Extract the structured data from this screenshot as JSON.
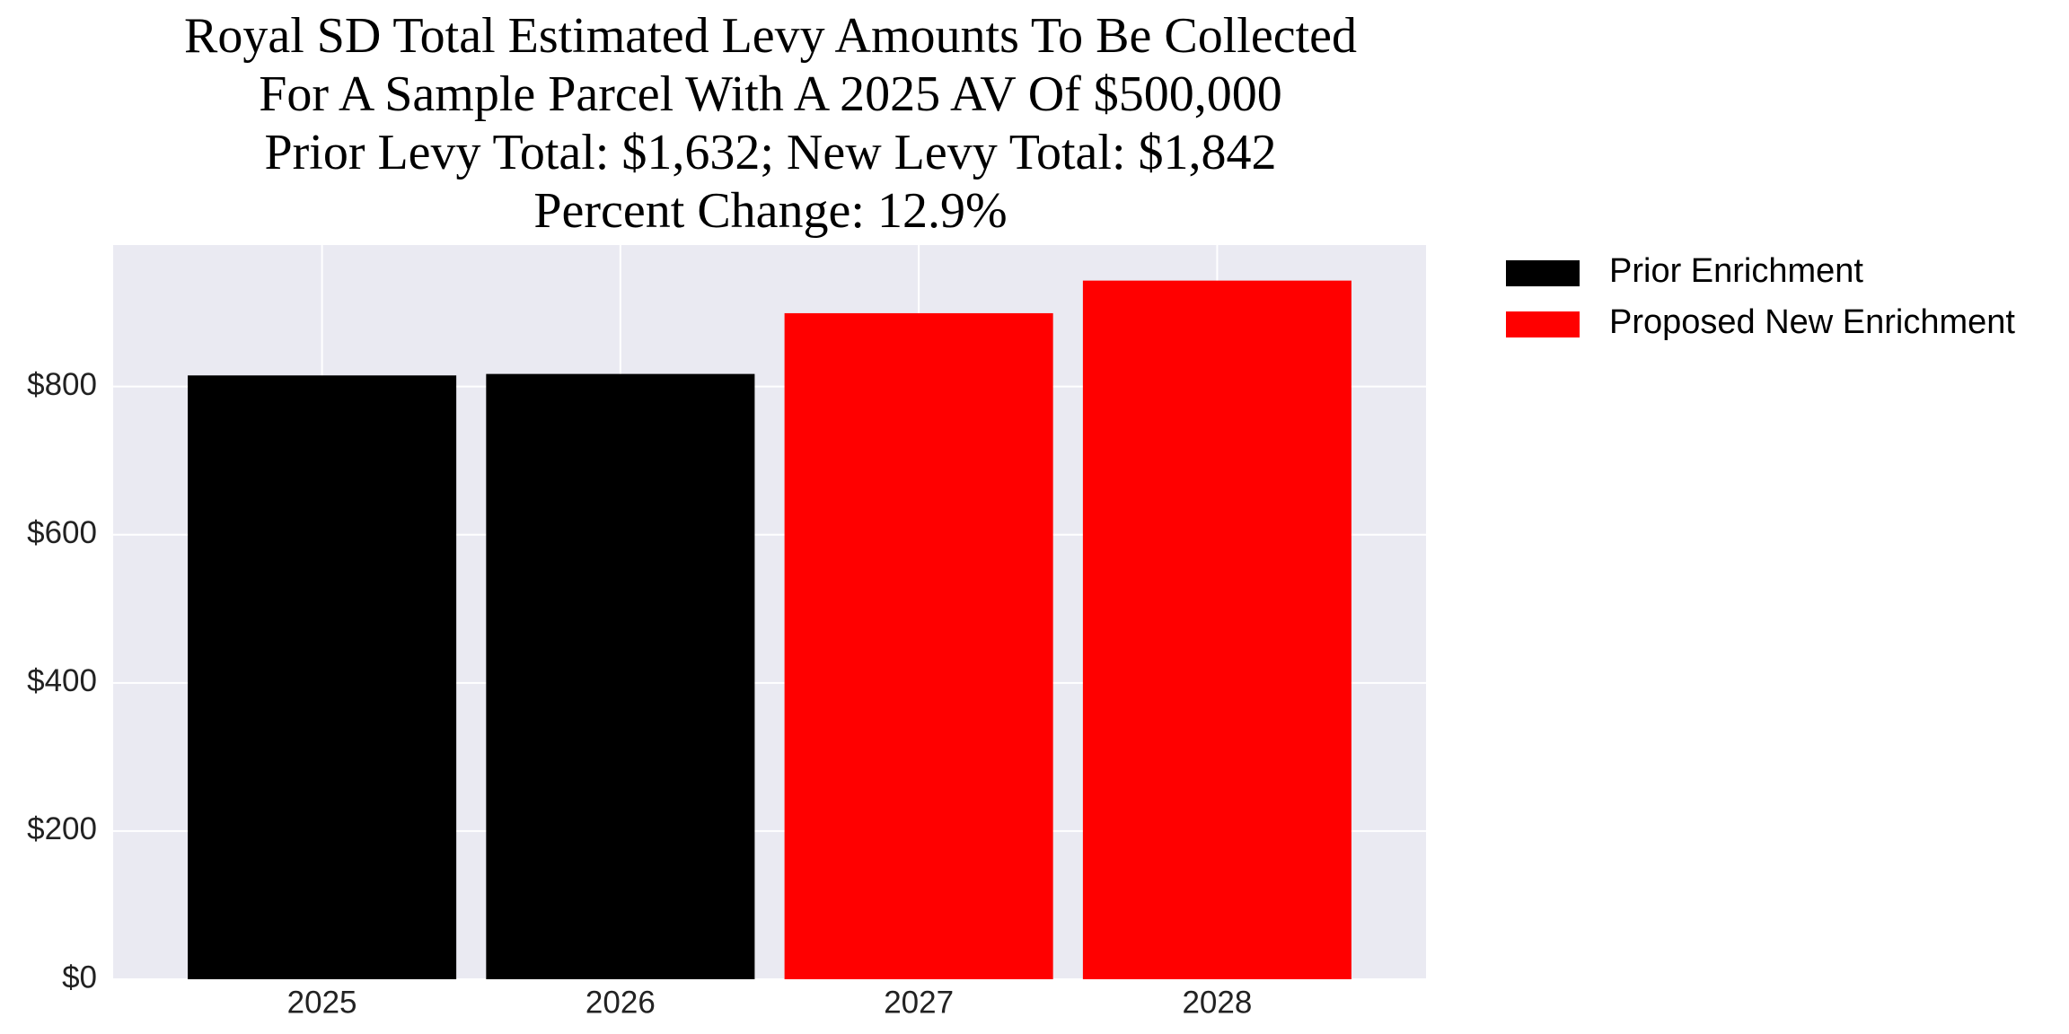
{
  "chart_data": {
    "type": "bar",
    "title": [
      "Royal SD Total Estimated Levy Amounts To Be Collected",
      "For A Sample Parcel With A 2025 AV Of $500,000",
      "Prior Levy Total:  $1,632; New Levy Total: $1,842",
      "Percent Change: 12.9%"
    ],
    "categories": [
      "2025",
      "2026",
      "2027",
      "2028"
    ],
    "series": [
      {
        "name": "Prior Enrichment",
        "color": "#000000",
        "values": [
          815,
          817,
          null,
          null
        ]
      },
      {
        "name": "Proposed New Enrichment",
        "color": "#ff0000",
        "values": [
          null,
          null,
          899,
          943
        ]
      }
    ],
    "ylim": [
      0,
      991
    ],
    "yticks": [
      {
        "value": 0,
        "label": "$0"
      },
      {
        "value": 200,
        "label": "$200"
      },
      {
        "value": 400,
        "label": "$400"
      },
      {
        "value": 600,
        "label": "$600"
      },
      {
        "value": 800,
        "label": "$800"
      }
    ],
    "grid": true,
    "legend": "outside-right"
  }
}
